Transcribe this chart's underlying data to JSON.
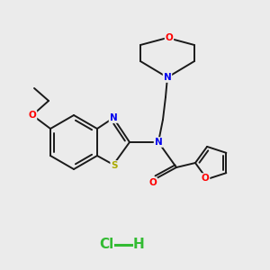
{
  "background_color": "#ebebeb",
  "bond_color": "#1a1a1a",
  "atom_colors": {
    "N": "#0000ee",
    "O": "#ff0000",
    "S": "#aaaa00",
    "Cl": "#33bb33",
    "H": "#33bb33"
  },
  "figsize": [
    3.0,
    3.0
  ],
  "dpi": 100
}
